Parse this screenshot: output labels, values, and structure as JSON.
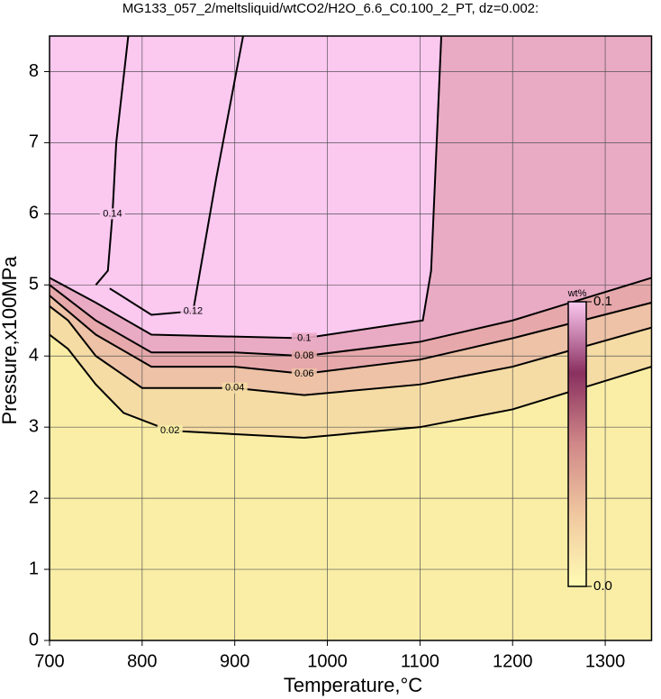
{
  "chart_data": {
    "type": "contour",
    "title": "MG133_057_2/meltsliquid/wtCO2/H2O_6.6_C0.100_2_PT, dz=0.002:",
    "x_label": "Temperature,°C",
    "y_label": "Pressure,x100MPa",
    "xlim": [
      700,
      1350
    ],
    "ylim": [
      0,
      8.5
    ],
    "xticks": [
      700,
      800,
      900,
      1000,
      1100,
      1200,
      1300
    ],
    "yticks": [
      0,
      1,
      2,
      3,
      4,
      5,
      6,
      7,
      8
    ],
    "grid": true,
    "background_color": "#fbc8f0",
    "series": [
      {
        "name": "0.14",
        "color": "#000000",
        "fill": "#fbc8f0",
        "x": [
          750,
          763,
          768,
          772,
          785
        ],
        "y": [
          5.0,
          5.2,
          6.0,
          7.0,
          8.5
        ]
      },
      {
        "name": "0.12",
        "color": "#000000",
        "fill": "#fbc8f0",
        "x": [
          765,
          810,
          855,
          880,
          909
        ],
        "y": [
          4.95,
          4.58,
          4.63,
          6.5,
          8.5
        ]
      },
      {
        "name": "0.1",
        "color": "#000000",
        "fill": "#e9aac4",
        "x": [
          700,
          750,
          810,
          975,
          1103,
          1112,
          1123
        ],
        "y": [
          5.1,
          4.75,
          4.3,
          4.25,
          4.5,
          5.2,
          8.5
        ]
      },
      {
        "name": "0.08",
        "color": "#000000",
        "fill": "#e6a8aa",
        "x": [
          700,
          750,
          810,
          900,
          975,
          1100,
          1200,
          1350
        ],
        "y": [
          5.0,
          4.5,
          4.05,
          4.05,
          4.0,
          4.2,
          4.5,
          5.1
        ]
      },
      {
        "name": "0.06",
        "color": "#000000",
        "fill": "#eec2a6",
        "x": [
          700,
          750,
          810,
          900,
          975,
          1100,
          1200,
          1350
        ],
        "y": [
          4.85,
          4.3,
          3.85,
          3.85,
          3.75,
          3.95,
          4.25,
          4.75
        ]
      },
      {
        "name": "0.04",
        "color": "#000000",
        "fill": "#f5dca4",
        "x": [
          700,
          720,
          750,
          800,
          900,
          975,
          1100,
          1200,
          1350
        ],
        "y": [
          4.7,
          4.5,
          4.0,
          3.55,
          3.55,
          3.45,
          3.6,
          3.85,
          4.4
        ]
      },
      {
        "name": "0.02",
        "color": "#000000",
        "fill": "#faeea6",
        "x": [
          700,
          720,
          750,
          780,
          830,
          975,
          1100,
          1200,
          1350
        ],
        "y": [
          4.3,
          4.1,
          3.6,
          3.2,
          2.95,
          2.85,
          3.0,
          3.25,
          3.85
        ]
      }
    ],
    "base_fill": "#fdf8a6",
    "colorbar": {
      "label": "wt%",
      "ticks": [
        {
          "value": 0,
          "label": "0.0"
        },
        0.1
      ],
      "colors": [
        "#fffcb4",
        "#f0c8a0",
        "#d08888",
        "#8a3060",
        "#fbc8f0"
      ]
    }
  }
}
